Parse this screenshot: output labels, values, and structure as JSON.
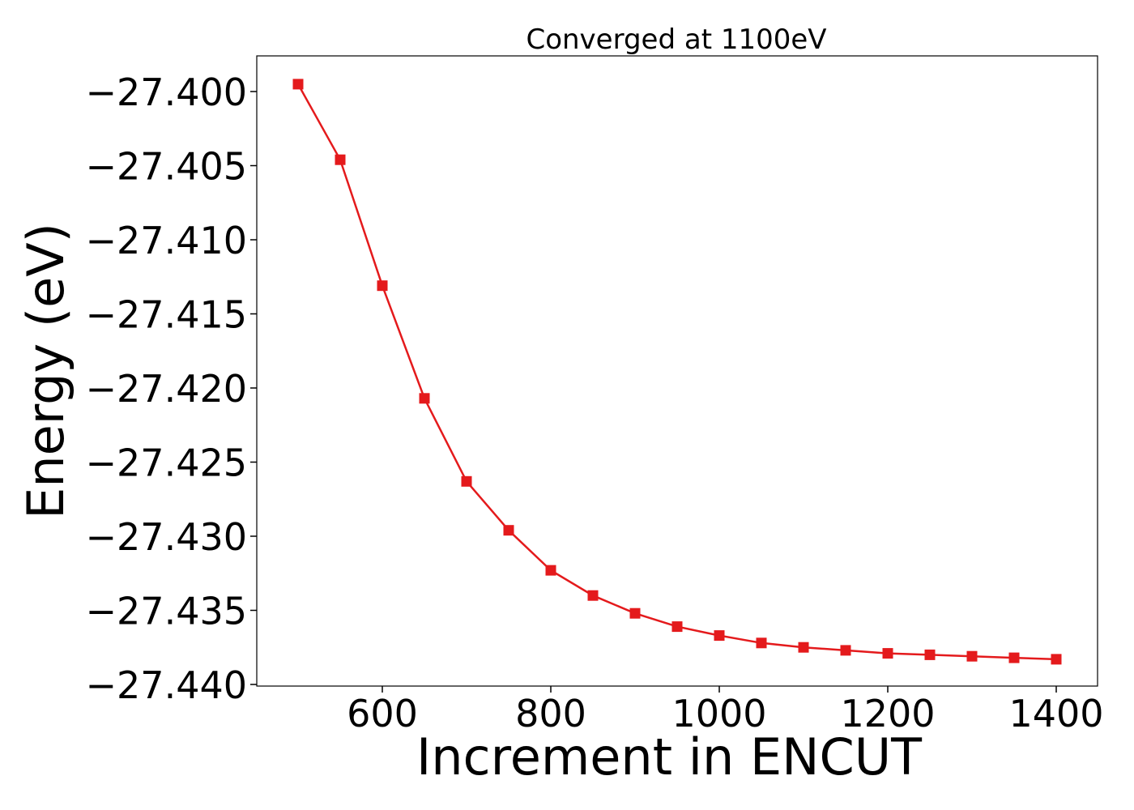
{
  "chart_data": {
    "type": "line",
    "title": "Converged at 1100eV",
    "xlabel": "Increment in ENCUT",
    "ylabel": "Energy (eV)",
    "xlim": [
      450,
      1450
    ],
    "ylim": [
      -27.44,
      -27.398
    ],
    "xticks": [
      600,
      800,
      1000,
      1200,
      1400
    ],
    "xtick_labels": [
      "600",
      "800",
      "1000",
      "1200",
      "1400"
    ],
    "yticks": [
      -27.4,
      -27.405,
      -27.41,
      -27.415,
      -27.42,
      -27.425,
      -27.43,
      -27.435,
      -27.44
    ],
    "ytick_labels": [
      "−27.400",
      "−27.405",
      "−27.410",
      "−27.415",
      "−27.420",
      "−27.425",
      "−27.430",
      "−27.435",
      "−27.440"
    ],
    "grid": false,
    "legend": "none",
    "series": [
      {
        "color": "#e41a1c",
        "marker": "square",
        "x": [
          500,
          550,
          600,
          650,
          700,
          750,
          800,
          850,
          900,
          950,
          1000,
          1050,
          1100,
          1150,
          1200,
          1250,
          1300,
          1350,
          1400
        ],
        "y": [
          -27.3995,
          -27.4046,
          -27.4131,
          -27.4207,
          -27.4263,
          -27.4296,
          -27.4323,
          -27.434,
          -27.4352,
          -27.4361,
          -27.4367,
          -27.4372,
          -27.4375,
          -27.4377,
          -27.4379,
          -27.438,
          -27.4381,
          -27.4382,
          -27.4383
        ]
      }
    ]
  }
}
